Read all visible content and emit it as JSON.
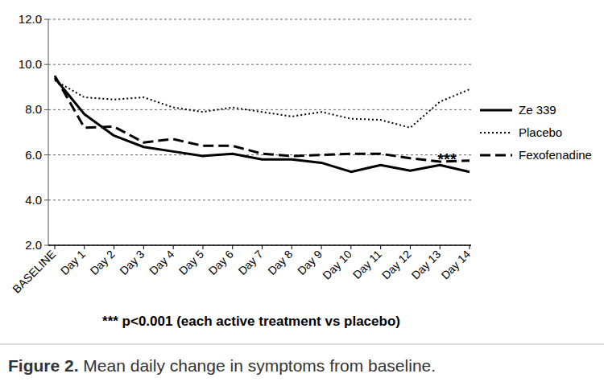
{
  "chart_data": {
    "type": "line",
    "caption": "Figure 2. Mean daily change in symptoms from baseline.",
    "annotation": "***",
    "footnote": "*** p<0.001 (each active treatment vs placebo)",
    "categories": [
      "BASELINE",
      "Day 1",
      "Day 2",
      "Day 3",
      "Day 4",
      "Day 5",
      "Day 6",
      "Day 7",
      "Day 8",
      "Day 9",
      "Day 10",
      "Day 11",
      "Day 12",
      "Day 13",
      "Day 14"
    ],
    "series": [
      {
        "name": "Ze 339",
        "color": "#000000",
        "line_style": "solid",
        "values": [
          9.4,
          7.8,
          6.85,
          6.35,
          6.15,
          5.95,
          6.05,
          5.8,
          5.8,
          5.65,
          5.25,
          5.55,
          5.3,
          5.55,
          5.25
        ]
      },
      {
        "name": "Placebo",
        "color": "#000000",
        "line_style": "dotted",
        "values": [
          9.3,
          8.55,
          8.45,
          8.55,
          8.1,
          7.9,
          8.1,
          7.9,
          7.7,
          7.9,
          7.6,
          7.55,
          7.2,
          8.35,
          8.9
        ]
      },
      {
        "name": "Fexofenadine",
        "color": "#000000",
        "line_style": "dashed",
        "values": [
          9.5,
          7.2,
          7.25,
          6.55,
          6.7,
          6.4,
          6.4,
          6.05,
          5.95,
          6.0,
          6.05,
          6.05,
          5.85,
          5.7,
          5.75
        ]
      }
    ],
    "ylim": [
      2,
      12
    ],
    "yticks": [
      {
        "value": 2,
        "label": "2.0"
      },
      {
        "value": 4,
        "label": "4.0"
      },
      {
        "value": 6,
        "label": "6.0"
      },
      {
        "value": 8,
        "label": "8.0"
      },
      {
        "value": 10,
        "label": "10.0"
      },
      {
        "value": 12,
        "label": "12.0"
      }
    ],
    "grid": true,
    "legend": "right"
  }
}
